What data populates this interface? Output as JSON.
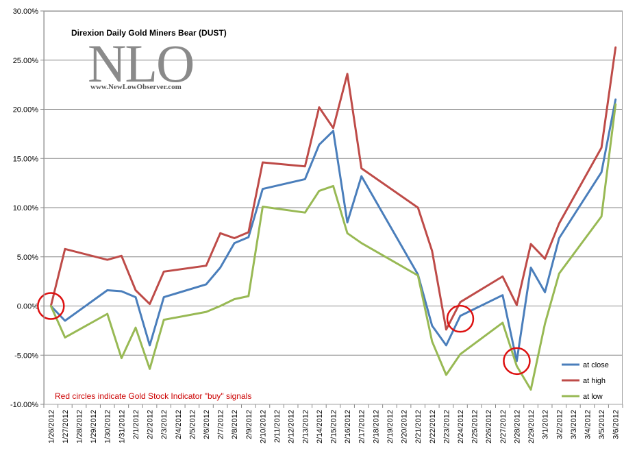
{
  "chart_data": {
    "type": "line",
    "title": "Direxion Daily Gold Miners Bear (DUST)",
    "logo": {
      "text": "NLO",
      "url": "www.NewLowObserver.com"
    },
    "annotation": "Red circles indicate Gold Stock Indicator \"buy\" signals",
    "categories": [
      "1/26/2012",
      "1/27/2012",
      "1/28/2012",
      "1/29/2012",
      "1/30/2012",
      "1/31/2012",
      "2/1/2012",
      "2/2/2012",
      "2/3/2012",
      "2/4/2012",
      "2/5/2012",
      "2/6/2012",
      "2/7/2012",
      "2/8/2012",
      "2/9/2012",
      "2/10/2012",
      "2/11/2012",
      "2/12/2012",
      "2/13/2012",
      "2/14/2012",
      "2/15/2012",
      "2/16/2012",
      "2/17/2012",
      "2/18/2012",
      "2/19/2012",
      "2/20/2012",
      "2/21/2012",
      "2/22/2012",
      "2/23/2012",
      "2/24/2012",
      "2/25/2012",
      "2/26/2012",
      "2/27/2012",
      "2/28/2012",
      "2/29/2012",
      "3/1/2012",
      "3/2/2012",
      "3/3/2012",
      "3/4/2012",
      "3/5/2012",
      "3/6/2012"
    ],
    "ylim": [
      -10,
      30
    ],
    "yticks": [
      "-10.00%",
      "-5.00%",
      "0.00%",
      "5.00%",
      "10.00%",
      "15.00%",
      "20.00%",
      "25.00%",
      "30.00%"
    ],
    "ytick_values": [
      -10,
      -5,
      0,
      5,
      10,
      15,
      20,
      25,
      30
    ],
    "grid": true,
    "legend_position": "bottom-right",
    "series": [
      {
        "name": "at close",
        "color": "#4a7ebb",
        "points": [
          [
            0,
            0.0
          ],
          [
            1,
            -1.5
          ],
          [
            4,
            1.6
          ],
          [
            5,
            1.5
          ],
          [
            6,
            0.9
          ],
          [
            7,
            -4.0
          ],
          [
            8,
            0.9
          ],
          [
            11,
            2.2
          ],
          [
            12,
            3.9
          ],
          [
            13,
            6.4
          ],
          [
            14,
            7.0
          ],
          [
            15,
            11.9
          ],
          [
            18,
            12.9
          ],
          [
            19,
            16.4
          ],
          [
            20,
            17.8
          ],
          [
            21,
            8.5
          ],
          [
            22,
            13.2
          ],
          [
            26,
            3.2
          ],
          [
            27,
            -2.0
          ],
          [
            28,
            -4.0
          ],
          [
            29,
            -1.0
          ],
          [
            32,
            1.1
          ],
          [
            33,
            -5.6
          ],
          [
            34,
            3.9
          ],
          [
            35,
            1.4
          ],
          [
            36,
            6.9
          ],
          [
            39,
            13.6
          ],
          [
            40,
            21.0
          ]
        ]
      },
      {
        "name": "at high",
        "color": "#be4b48",
        "points": [
          [
            0,
            0.0
          ],
          [
            1,
            5.8
          ],
          [
            4,
            4.7
          ],
          [
            5,
            5.1
          ],
          [
            6,
            1.6
          ],
          [
            7,
            0.2
          ],
          [
            8,
            3.5
          ],
          [
            11,
            4.1
          ],
          [
            12,
            7.4
          ],
          [
            13,
            6.9
          ],
          [
            14,
            7.5
          ],
          [
            15,
            14.6
          ],
          [
            18,
            14.2
          ],
          [
            19,
            20.2
          ],
          [
            20,
            18.1
          ],
          [
            21,
            23.6
          ],
          [
            22,
            14.0
          ],
          [
            26,
            10.0
          ],
          [
            27,
            5.6
          ],
          [
            28,
            -2.4
          ],
          [
            29,
            0.4
          ],
          [
            32,
            3.0
          ],
          [
            33,
            0.1
          ],
          [
            34,
            6.3
          ],
          [
            35,
            4.8
          ],
          [
            36,
            8.4
          ],
          [
            39,
            16.1
          ],
          [
            40,
            26.3
          ]
        ]
      },
      {
        "name": "at low",
        "color": "#98b954",
        "points": [
          [
            0,
            0.0
          ],
          [
            1,
            -3.2
          ],
          [
            4,
            -0.8
          ],
          [
            5,
            -5.3
          ],
          [
            6,
            -2.2
          ],
          [
            7,
            -6.4
          ],
          [
            8,
            -1.4
          ],
          [
            11,
            -0.6
          ],
          [
            12,
            0.0
          ],
          [
            13,
            0.7
          ],
          [
            14,
            1.0
          ],
          [
            15,
            10.1
          ],
          [
            18,
            9.5
          ],
          [
            19,
            11.7
          ],
          [
            20,
            12.2
          ],
          [
            21,
            7.4
          ],
          [
            22,
            6.4
          ],
          [
            26,
            3.1
          ],
          [
            27,
            -3.6
          ],
          [
            28,
            -7.0
          ],
          [
            29,
            -4.9
          ],
          [
            32,
            -1.7
          ],
          [
            33,
            -6.1
          ],
          [
            34,
            -8.5
          ],
          [
            35,
            -1.8
          ],
          [
            36,
            3.3
          ],
          [
            39,
            9.1
          ],
          [
            40,
            20.5
          ]
        ]
      }
    ],
    "buy_signals": [
      {
        "x": 0,
        "y": 0.0
      },
      {
        "x": 29,
        "y": -1.3
      },
      {
        "x": 33,
        "y": -5.6
      }
    ],
    "signal_color": "#dd1111"
  }
}
